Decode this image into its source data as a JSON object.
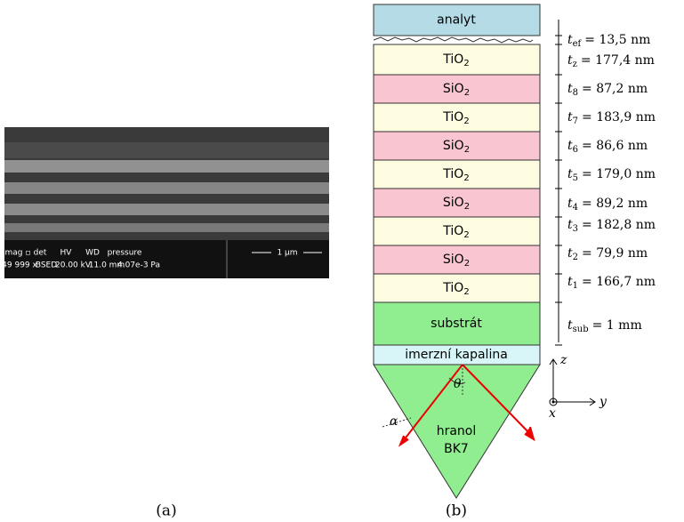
{
  "panel_a": {
    "label": "(a)",
    "info_bar": {
      "headers": [
        "mag ▫",
        "det",
        "HV",
        "WD",
        "pressure"
      ],
      "values": [
        "49 999 x",
        "BSED",
        "20.00 kV",
        "11.0 mm",
        "4.07e-3 Pa"
      ],
      "scale": "1 µm"
    }
  },
  "panel_b": {
    "label": "(b)",
    "layers": [
      {
        "text": "analyt"
      },
      {
        "text": "TiO",
        "sub": "2"
      },
      {
        "text": "SiO",
        "sub": "2"
      },
      {
        "text": "TiO",
        "sub": "2"
      },
      {
        "text": "SiO",
        "sub": "2"
      },
      {
        "text": "TiO",
        "sub": "2"
      },
      {
        "text": "SiO",
        "sub": "2"
      },
      {
        "text": "TiO",
        "sub": "2"
      },
      {
        "text": "SiO",
        "sub": "2"
      },
      {
        "text": "TiO",
        "sub": "2"
      },
      {
        "text": "substrát"
      },
      {
        "text": "imerzní kapalina"
      }
    ],
    "thicknesses": [
      {
        "symbol": "t",
        "sub": "ef",
        "value": "= 13,5 nm"
      },
      {
        "symbol": "t",
        "sub": "z",
        "value": "= 177,4 nm"
      },
      {
        "symbol": "t",
        "sub": "8",
        "value": "= 87,2 nm"
      },
      {
        "symbol": "t",
        "sub": "7",
        "value": "= 183,9 nm"
      },
      {
        "symbol": "t",
        "sub": "6",
        "value": "= 86,6 nm"
      },
      {
        "symbol": "t",
        "sub": "5",
        "value": "= 179,0 nm"
      },
      {
        "symbol": "t",
        "sub": "4",
        "value": "= 89,2 nm"
      },
      {
        "symbol": "t",
        "sub": "3",
        "value": "= 182,8 nm"
      },
      {
        "symbol": "t",
        "sub": "2",
        "value": "= 79,9 nm"
      },
      {
        "symbol": "t",
        "sub": "1",
        "value": "= 166,7 nm"
      },
      {
        "symbol": "t",
        "sub": "sub",
        "value": "= 1 mm"
      }
    ],
    "prism": [
      "hranol",
      "BK7"
    ],
    "axes": {
      "z": "z",
      "y": "y",
      "x": "x"
    },
    "angles": [
      "θ",
      "α"
    ]
  }
}
